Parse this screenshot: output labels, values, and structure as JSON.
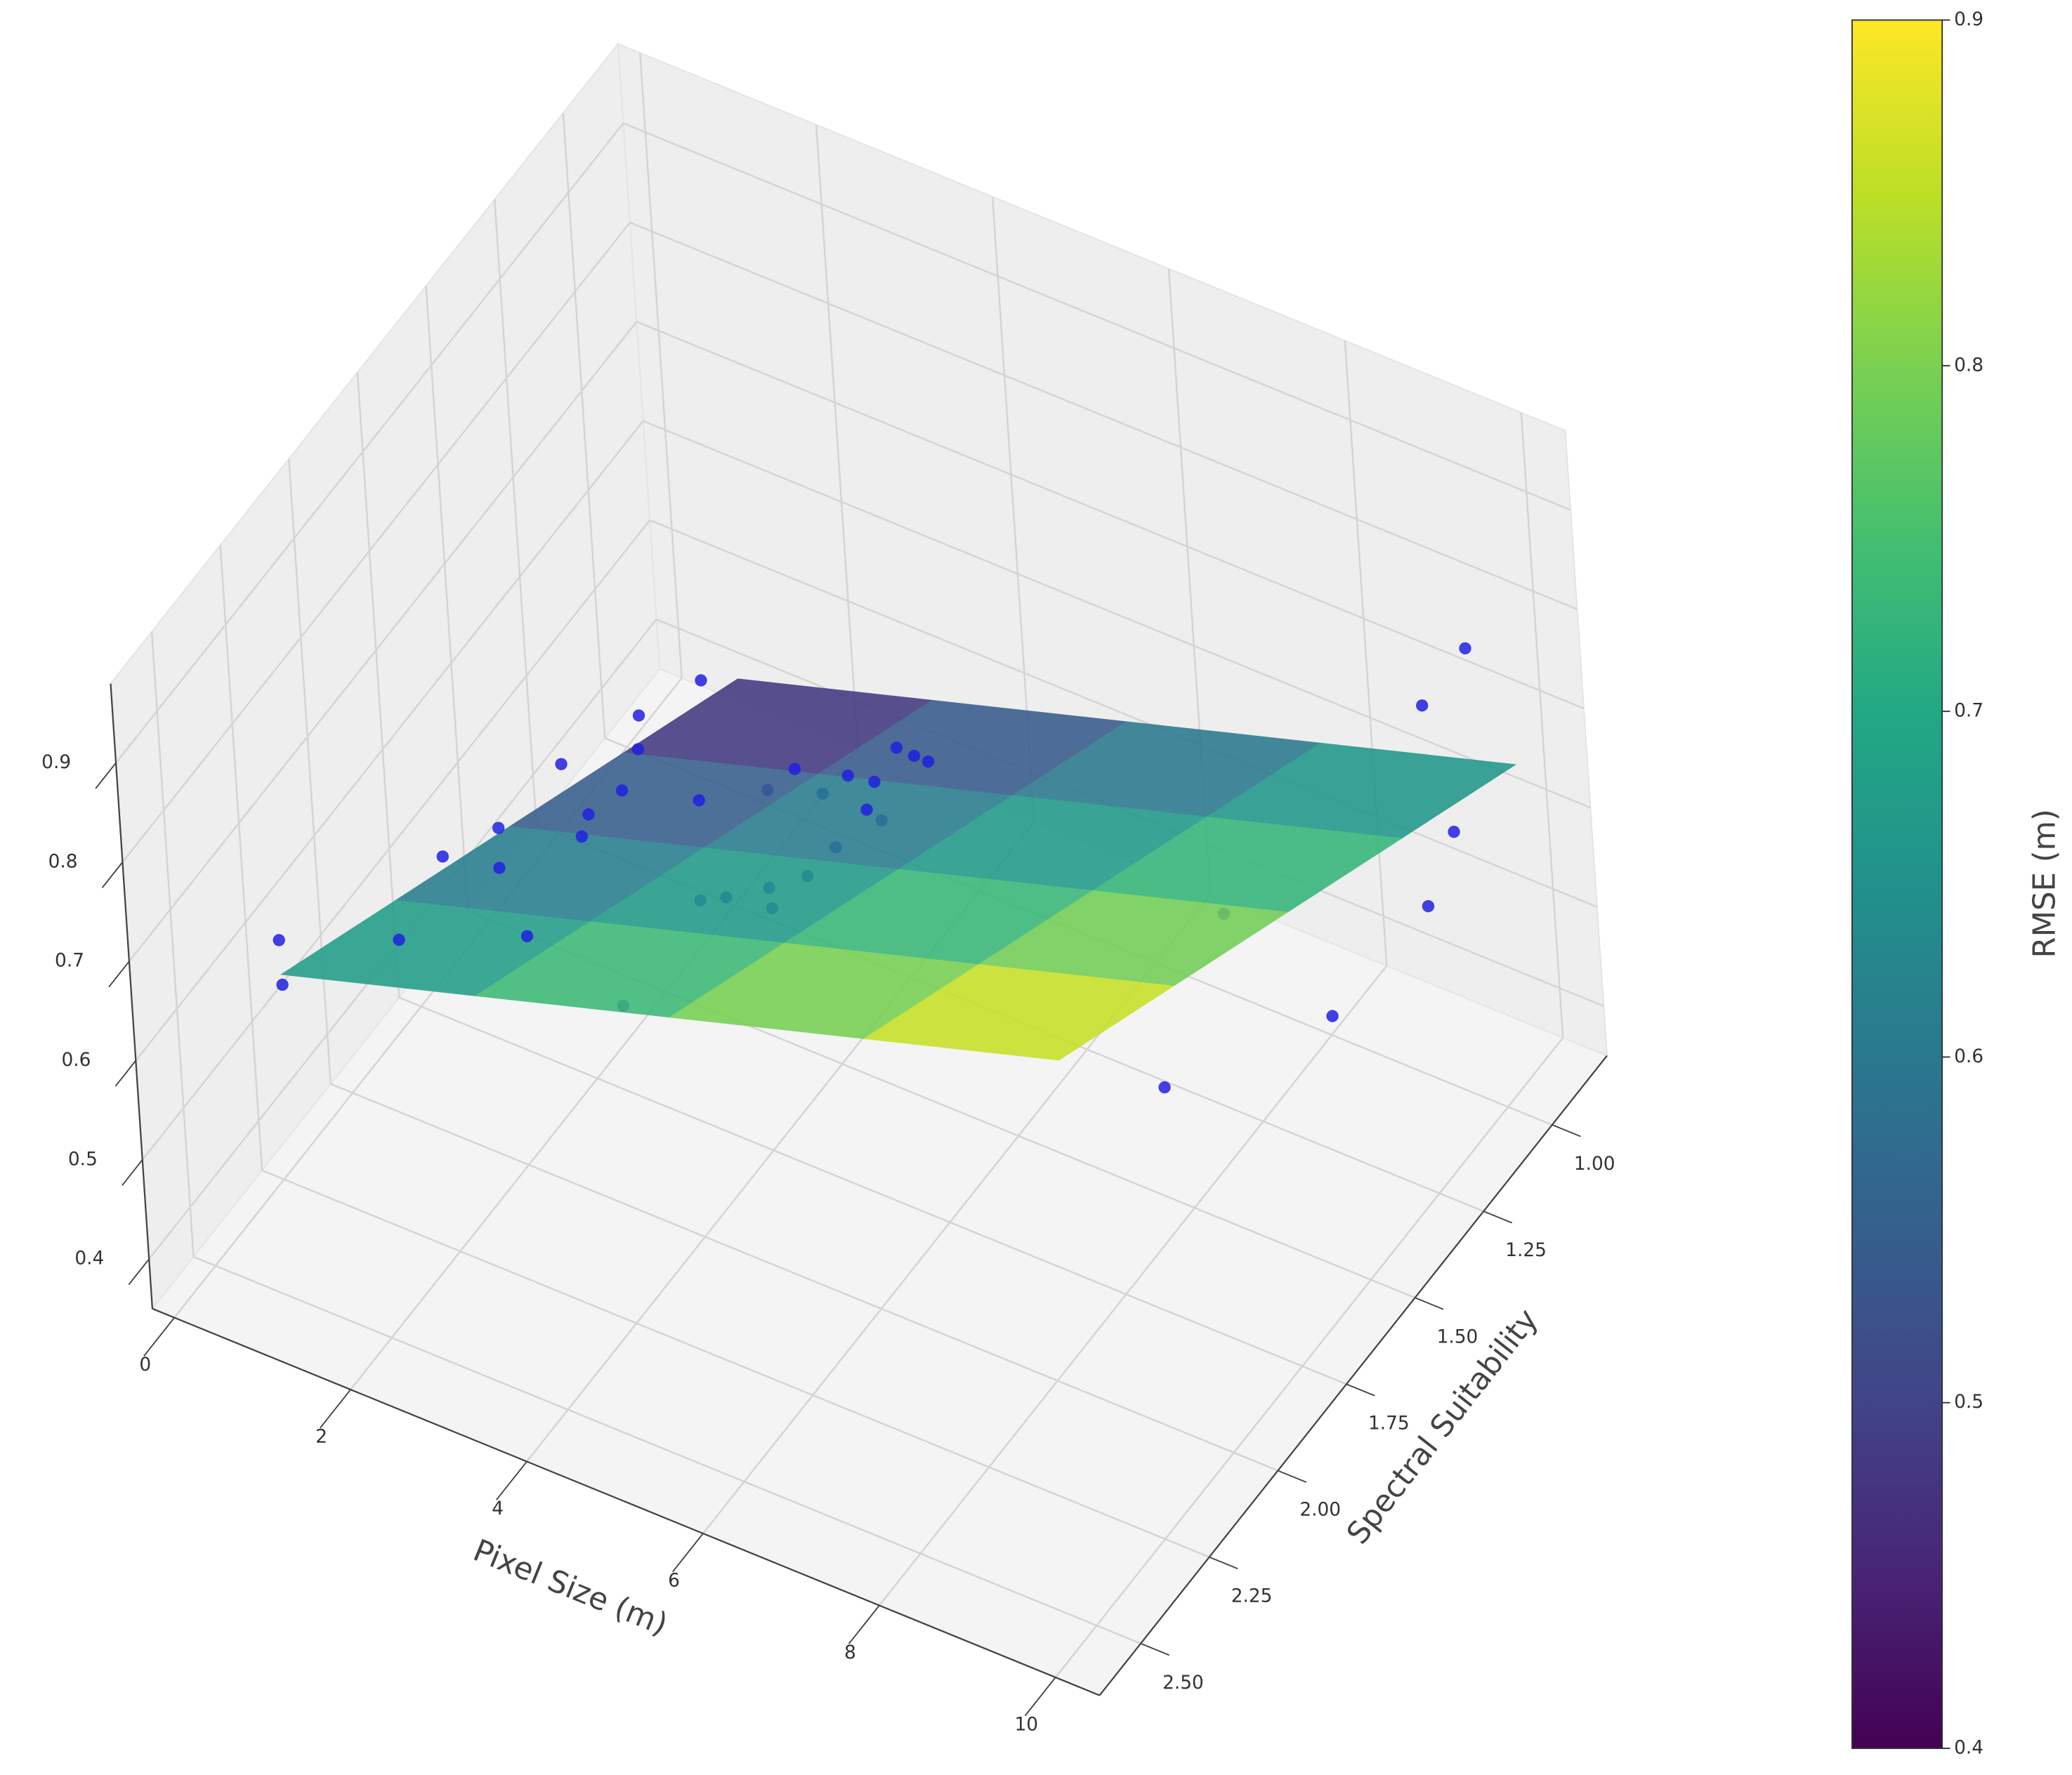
{
  "chart_data": {
    "type": "scatter3d",
    "x_label": "Pixel Size (m)",
    "y_label": "Spectral Suitability",
    "colorbar_label": "RMSE (m)",
    "xlim": [
      -0.25,
      10.5
    ],
    "ylim": [
      0.8,
      2.65
    ],
    "zlim": [
      0.35,
      0.98
    ],
    "xticks": [
      0,
      2,
      4,
      6,
      8,
      10
    ],
    "yticks": [
      {
        "value": 1,
        "label": "1.00"
      },
      {
        "value": 1.25,
        "label": "1.25"
      },
      {
        "value": 1.5,
        "label": "1.50"
      },
      {
        "value": 1.75,
        "label": "1.75"
      },
      {
        "value": 2,
        "label": "2.00"
      },
      {
        "value": 2.25,
        "label": "2.25"
      },
      {
        "value": 2.5,
        "label": "2.50"
      }
    ],
    "zticks": [
      0.4,
      0.5,
      0.6,
      0.7,
      0.8,
      0.9
    ],
    "grid": true,
    "colormap": "viridis",
    "clim": [
      0.4,
      0.9
    ],
    "cticks": [
      0.4,
      0.5,
      0.6,
      0.7,
      0.8,
      0.9
    ],
    "surface": {
      "x": [
        1,
        3.25,
        5.5,
        7.75,
        10
      ],
      "y": [
        0.9,
        1.3,
        1.7,
        2.1,
        2.5
      ],
      "z": [
        [
          0.42,
          0.48,
          0.54,
          0.6,
          0.66
        ],
        [
          0.485,
          0.545,
          0.605,
          0.665,
          0.725
        ],
        [
          0.55,
          0.61,
          0.67,
          0.73,
          0.79
        ],
        [
          0.615,
          0.675,
          0.735,
          0.795,
          0.855
        ],
        [
          0.68,
          0.74,
          0.8,
          0.86,
          0.92
        ]
      ]
    },
    "series": [
      {
        "color": "#2020e0",
        "x": [
          9.44,
          9.24,
          9.86,
          9.78,
          9.34,
          8.02,
          8.81,
          0.89,
          0.93,
          3.19,
          1.77,
          2.99,
          2.31,
          2.58,
          2.74,
          3.21,
          3.42,
          3.69,
          3.91,
          3.84,
          4.35,
          3.22,
          4.29,
          4.35,
          4.04,
          3.77,
          3.53,
          3.05,
          2.96,
          4.31,
          4.51,
          4.3,
          4.4,
          4.15,
          3.92,
          3.72,
          3.54,
          4.17,
          4.51
        ],
        "y": [
          0.88,
          0.98,
          1.08,
          1.16,
          1.38,
          1.58,
          1.57,
          2.47,
          2.48,
          1.99,
          2.32,
          2.24,
          2.31,
          2.2,
          2.24,
          2.15,
          2.13,
          2.09,
          2.08,
          2.07,
          1.99,
          2.1,
          1.33,
          1.29,
          1.34,
          1.35,
          1.37,
          1.32,
          1.39,
          1.45,
          1.46,
          1.56,
          1.69,
          1.75,
          1.83,
          1.86,
          1.79,
          1.75,
          1.29
        ],
        "z": [
          0.75,
          0.72,
          0.65,
          0.6,
          0.55,
          0.5,
          0.7,
          0.7,
          0.66,
          0.55,
          0.68,
          0.7,
          0.78,
          0.74,
          0.8,
          0.85,
          0.8,
          0.82,
          0.9,
          0.86,
          0.92,
          0.76,
          0.62,
          0.6,
          0.58,
          0.58,
          0.56,
          0.55,
          0.55,
          0.6,
          0.6,
          0.6,
          0.62,
          0.62,
          0.63,
          0.63,
          0.7,
          0.6,
          0.6
        ]
      }
    ]
  }
}
